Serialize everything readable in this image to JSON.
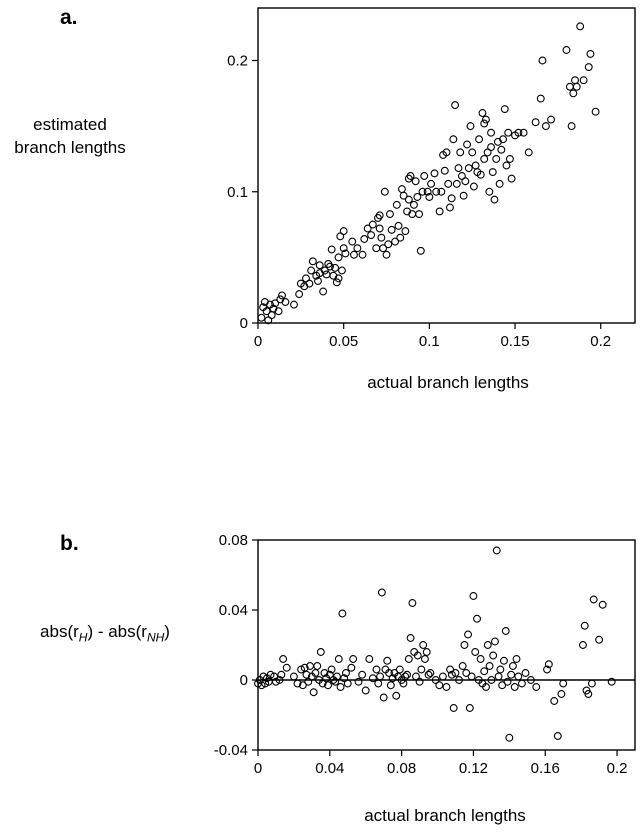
{
  "chart_data": [
    {
      "type": "scatter",
      "panel_label": "a.",
      "ylabel_line1": "estimated",
      "ylabel_line2": "branch lengths",
      "xlabel": "actual branch lengths",
      "xlim": [
        0,
        0.22
      ],
      "ylim": [
        0,
        0.24
      ],
      "xticks": [
        0,
        0.05,
        0.1,
        0.15,
        0.2
      ],
      "xtick_labels": [
        "0",
        "0.05",
        "0.1",
        "0.15",
        "0.2"
      ],
      "yticks": [
        0,
        0.1,
        0.2
      ],
      "ytick_labels": [
        "0",
        "0.1",
        "0.2"
      ],
      "grid": false,
      "marker": "open-circle",
      "points": [
        [
          0.002,
          0.004
        ],
        [
          0.003,
          0.012
        ],
        [
          0.004,
          0.016
        ],
        [
          0.005,
          0.009
        ],
        [
          0.006,
          0.002
        ],
        [
          0.007,
          0.014
        ],
        [
          0.008,
          0.006
        ],
        [
          0.009,
          0.011
        ],
        [
          0.01,
          0.015
        ],
        [
          0.012,
          0.009
        ],
        [
          0.013,
          0.018
        ],
        [
          0.014,
          0.021
        ],
        [
          0.016,
          0.016
        ],
        [
          0.021,
          0.014
        ],
        [
          0.024,
          0.022
        ],
        [
          0.025,
          0.03
        ],
        [
          0.027,
          0.028
        ],
        [
          0.028,
          0.034
        ],
        [
          0.03,
          0.03
        ],
        [
          0.031,
          0.04
        ],
        [
          0.032,
          0.047
        ],
        [
          0.034,
          0.036
        ],
        [
          0.035,
          0.032
        ],
        [
          0.036,
          0.038
        ],
        [
          0.036,
          0.044
        ],
        [
          0.038,
          0.024
        ],
        [
          0.039,
          0.04
        ],
        [
          0.04,
          0.037
        ],
        [
          0.041,
          0.045
        ],
        [
          0.042,
          0.043
        ],
        [
          0.043,
          0.056
        ],
        [
          0.044,
          0.036
        ],
        [
          0.045,
          0.042
        ],
        [
          0.046,
          0.031
        ],
        [
          0.047,
          0.034
        ],
        [
          0.047,
          0.05
        ],
        [
          0.048,
          0.066
        ],
        [
          0.049,
          0.04
        ],
        [
          0.05,
          0.057
        ],
        [
          0.05,
          0.07
        ],
        [
          0.051,
          0.053
        ],
        [
          0.055,
          0.062
        ],
        [
          0.056,
          0.052
        ],
        [
          0.058,
          0.057
        ],
        [
          0.061,
          0.052
        ],
        [
          0.062,
          0.064
        ],
        [
          0.064,
          0.072
        ],
        [
          0.066,
          0.067
        ],
        [
          0.067,
          0.075
        ],
        [
          0.069,
          0.057
        ],
        [
          0.07,
          0.08
        ],
        [
          0.071,
          0.082
        ],
        [
          0.071,
          0.072
        ],
        [
          0.072,
          0.065
        ],
        [
          0.073,
          0.057
        ],
        [
          0.074,
          0.1
        ],
        [
          0.075,
          0.052
        ],
        [
          0.076,
          0.06
        ],
        [
          0.077,
          0.083
        ],
        [
          0.078,
          0.071
        ],
        [
          0.08,
          0.062
        ],
        [
          0.081,
          0.09
        ],
        [
          0.082,
          0.074
        ],
        [
          0.083,
          0.065
        ],
        [
          0.084,
          0.102
        ],
        [
          0.085,
          0.097
        ],
        [
          0.086,
          0.07
        ],
        [
          0.087,
          0.085
        ],
        [
          0.088,
          0.094
        ],
        [
          0.088,
          0.11
        ],
        [
          0.089,
          0.112
        ],
        [
          0.09,
          0.083
        ],
        [
          0.091,
          0.09
        ],
        [
          0.092,
          0.108
        ],
        [
          0.093,
          0.096
        ],
        [
          0.094,
          0.083
        ],
        [
          0.095,
          0.055
        ],
        [
          0.096,
          0.1
        ],
        [
          0.097,
          0.112
        ],
        [
          0.099,
          0.1
        ],
        [
          0.1,
          0.096
        ],
        [
          0.101,
          0.106
        ],
        [
          0.103,
          0.114
        ],
        [
          0.104,
          0.1
        ],
        [
          0.106,
          0.085
        ],
        [
          0.107,
          0.1
        ],
        [
          0.108,
          0.128
        ],
        [
          0.109,
          0.116
        ],
        [
          0.11,
          0.13
        ],
        [
          0.111,
          0.106
        ],
        [
          0.112,
          0.088
        ],
        [
          0.113,
          0.095
        ],
        [
          0.114,
          0.14
        ],
        [
          0.115,
          0.166
        ],
        [
          0.116,
          0.106
        ],
        [
          0.117,
          0.118
        ],
        [
          0.118,
          0.13
        ],
        [
          0.119,
          0.112
        ],
        [
          0.12,
          0.097
        ],
        [
          0.121,
          0.108
        ],
        [
          0.122,
          0.136
        ],
        [
          0.123,
          0.118
        ],
        [
          0.124,
          0.15
        ],
        [
          0.125,
          0.13
        ],
        [
          0.126,
          0.104
        ],
        [
          0.127,
          0.12
        ],
        [
          0.128,
          0.115
        ],
        [
          0.129,
          0.14
        ],
        [
          0.13,
          0.113
        ],
        [
          0.131,
          0.16
        ],
        [
          0.132,
          0.152
        ],
        [
          0.132,
          0.125
        ],
        [
          0.133,
          0.155
        ],
        [
          0.134,
          0.13
        ],
        [
          0.135,
          0.1
        ],
        [
          0.136,
          0.145
        ],
        [
          0.136,
          0.134
        ],
        [
          0.137,
          0.115
        ],
        [
          0.138,
          0.094
        ],
        [
          0.139,
          0.125
        ],
        [
          0.14,
          0.138
        ],
        [
          0.141,
          0.106
        ],
        [
          0.142,
          0.132
        ],
        [
          0.143,
          0.14
        ],
        [
          0.144,
          0.163
        ],
        [
          0.145,
          0.12
        ],
        [
          0.146,
          0.145
        ],
        [
          0.147,
          0.125
        ],
        [
          0.148,
          0.11
        ],
        [
          0.15,
          0.143
        ],
        [
          0.152,
          0.145
        ],
        [
          0.155,
          0.145
        ],
        [
          0.158,
          0.13
        ],
        [
          0.162,
          0.153
        ],
        [
          0.165,
          0.171
        ],
        [
          0.166,
          0.2
        ],
        [
          0.168,
          0.15
        ],
        [
          0.171,
          0.155
        ],
        [
          0.18,
          0.208
        ],
        [
          0.182,
          0.18
        ],
        [
          0.183,
          0.15
        ],
        [
          0.184,
          0.175
        ],
        [
          0.185,
          0.185
        ],
        [
          0.186,
          0.18
        ],
        [
          0.188,
          0.226
        ],
        [
          0.19,
          0.185
        ],
        [
          0.193,
          0.195
        ],
        [
          0.194,
          0.205
        ],
        [
          0.197,
          0.161
        ]
      ]
    },
    {
      "type": "scatter",
      "panel_label": "b.",
      "ylabel_main": "abs(r",
      "ylabel_sub1": "H",
      "ylabel_mid": ") - abs(r",
      "ylabel_sub2": "NH",
      "ylabel_end": ")",
      "xlabel": "actual branch lengths",
      "xlim": [
        0,
        0.21
      ],
      "ylim": [
        -0.04,
        0.08
      ],
      "xticks": [
        0,
        0.04,
        0.08,
        0.12,
        0.16,
        0.2
      ],
      "xtick_labels": [
        "0",
        "0.04",
        "0.08",
        "0.12",
        "0.16",
        "0.2"
      ],
      "yticks": [
        -0.04,
        0,
        0.04,
        0.08
      ],
      "ytick_labels": [
        "-0.04",
        "0",
        "0.04",
        "0.08"
      ],
      "reference_line_y": 0,
      "grid": false,
      "marker": "open-circle",
      "points": [
        [
          0.0,
          -0.002
        ],
        [
          0.001,
          0.0
        ],
        [
          0.002,
          -0.003
        ],
        [
          0.003,
          0.002
        ],
        [
          0.004,
          -0.002
        ],
        [
          0.005,
          0.001
        ],
        [
          0.006,
          -0.001
        ],
        [
          0.007,
          0.003
        ],
        [
          0.009,
          0.002
        ],
        [
          0.01,
          -0.001
        ],
        [
          0.012,
          0.0
        ],
        [
          0.013,
          0.003
        ],
        [
          0.014,
          0.012
        ],
        [
          0.016,
          0.007
        ],
        [
          0.02,
          0.002
        ],
        [
          0.022,
          -0.002
        ],
        [
          0.024,
          0.006
        ],
        [
          0.025,
          -0.003
        ],
        [
          0.026,
          0.007
        ],
        [
          0.027,
          0.003
        ],
        [
          0.028,
          -0.001
        ],
        [
          0.029,
          0.008
        ],
        [
          0.03,
          0.002
        ],
        [
          0.031,
          -0.007
        ],
        [
          0.032,
          0.004
        ],
        [
          0.033,
          0.008
        ],
        [
          0.034,
          0.0
        ],
        [
          0.035,
          0.016
        ],
        [
          0.036,
          -0.002
        ],
        [
          0.037,
          0.004
        ],
        [
          0.038,
          0.001
        ],
        [
          0.039,
          -0.003
        ],
        [
          0.04,
          0.003
        ],
        [
          0.041,
          0.006
        ],
        [
          0.042,
          0.0
        ],
        [
          0.043,
          -0.001
        ],
        [
          0.044,
          0.002
        ],
        [
          0.045,
          0.012
        ],
        [
          0.046,
          -0.004
        ],
        [
          0.047,
          0.038
        ],
        [
          0.048,
          0.001
        ],
        [
          0.049,
          0.004
        ],
        [
          0.05,
          -0.002
        ],
        [
          0.052,
          0.007
        ],
        [
          0.053,
          0.012
        ],
        [
          0.056,
          -0.001
        ],
        [
          0.058,
          0.003
        ],
        [
          0.06,
          -0.006
        ],
        [
          0.062,
          0.012
        ],
        [
          0.064,
          0.001
        ],
        [
          0.066,
          0.006
        ],
        [
          0.067,
          -0.002
        ],
        [
          0.068,
          0.002
        ],
        [
          0.069,
          0.05
        ],
        [
          0.07,
          -0.01
        ],
        [
          0.071,
          0.006
        ],
        [
          0.072,
          0.011
        ],
        [
          0.073,
          0.004
        ],
        [
          0.074,
          -0.003
        ],
        [
          0.075,
          0.001
        ],
        [
          0.076,
          0.004
        ],
        [
          0.077,
          -0.009
        ],
        [
          0.078,
          0.002
        ],
        [
          0.079,
          0.006
        ],
        [
          0.08,
          0.0
        ],
        [
          0.081,
          -0.002
        ],
        [
          0.082,
          0.002
        ],
        [
          0.083,
          0.003
        ],
        [
          0.084,
          0.012
        ],
        [
          0.085,
          0.024
        ],
        [
          0.086,
          0.044
        ],
        [
          0.087,
          0.016
        ],
        [
          0.088,
          0.002
        ],
        [
          0.089,
          0.014
        ],
        [
          0.09,
          -0.001
        ],
        [
          0.091,
          0.006
        ],
        [
          0.092,
          0.02
        ],
        [
          0.093,
          0.012
        ],
        [
          0.094,
          0.016
        ],
        [
          0.095,
          0.003
        ],
        [
          0.096,
          0.004
        ],
        [
          0.099,
          0.0
        ],
        [
          0.101,
          -0.003
        ],
        [
          0.103,
          0.002
        ],
        [
          0.105,
          -0.004
        ],
        [
          0.107,
          0.006
        ],
        [
          0.108,
          0.003
        ],
        [
          0.109,
          -0.016
        ],
        [
          0.11,
          0.004
        ],
        [
          0.112,
          0.0
        ],
        [
          0.114,
          0.008
        ],
        [
          0.115,
          0.02
        ],
        [
          0.116,
          0.004
        ],
        [
          0.117,
          0.026
        ],
        [
          0.118,
          -0.016
        ],
        [
          0.119,
          0.002
        ],
        [
          0.12,
          0.048
        ],
        [
          0.121,
          0.016
        ],
        [
          0.122,
          0.035
        ],
        [
          0.123,
          0.0
        ],
        [
          0.124,
          0.012
        ],
        [
          0.125,
          -0.002
        ],
        [
          0.126,
          0.005
        ],
        [
          0.127,
          -0.004
        ],
        [
          0.128,
          0.02
        ],
        [
          0.129,
          0.008
        ],
        [
          0.13,
          0.0
        ],
        [
          0.131,
          0.014
        ],
        [
          0.132,
          0.022
        ],
        [
          0.133,
          0.074
        ],
        [
          0.134,
          0.002
        ],
        [
          0.135,
          0.006
        ],
        [
          0.136,
          -0.003
        ],
        [
          0.137,
          0.011
        ],
        [
          0.138,
          0.028
        ],
        [
          0.139,
          -0.001
        ],
        [
          0.14,
          -0.033
        ],
        [
          0.141,
          0.003
        ],
        [
          0.142,
          0.008
        ],
        [
          0.143,
          -0.004
        ],
        [
          0.144,
          0.012
        ],
        [
          0.145,
          0.002
        ],
        [
          0.147,
          -0.002
        ],
        [
          0.149,
          0.004
        ],
        [
          0.152,
          0.0
        ],
        [
          0.155,
          -0.004
        ],
        [
          0.161,
          0.006
        ],
        [
          0.162,
          0.009
        ],
        [
          0.165,
          -0.012
        ],
        [
          0.167,
          -0.032
        ],
        [
          0.169,
          -0.008
        ],
        [
          0.17,
          -0.002
        ],
        [
          0.181,
          0.02
        ],
        [
          0.182,
          0.031
        ],
        [
          0.183,
          -0.006
        ],
        [
          0.184,
          -0.008
        ],
        [
          0.186,
          -0.002
        ],
        [
          0.187,
          0.046
        ],
        [
          0.19,
          0.023
        ],
        [
          0.192,
          0.043
        ],
        [
          0.197,
          -0.001
        ]
      ]
    }
  ]
}
